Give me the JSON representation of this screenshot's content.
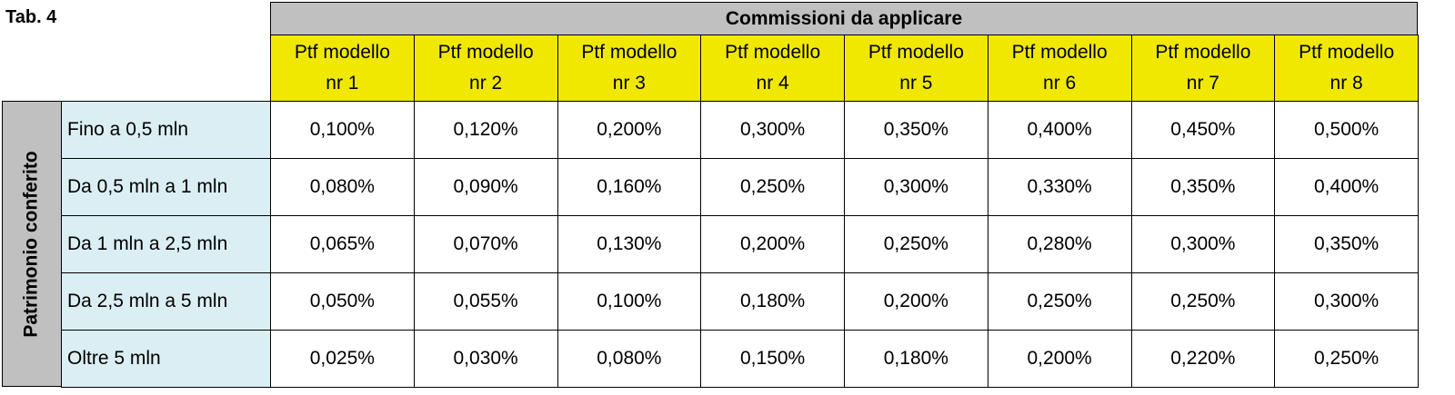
{
  "table": {
    "label": "Tab. 4",
    "group_header": "Commissioni da applicare",
    "side_header": "Patrimonio conferito",
    "columns": [
      "Ptf modello nr 1",
      "Ptf modello nr 2",
      "Ptf modello nr 3",
      "Ptf modello nr 4",
      "Ptf modello nr 5",
      "Ptf modello nr 6",
      "Ptf modello nr 7",
      "Ptf modello nr 8"
    ],
    "row_labels": [
      "Fino a 0,5 mln",
      "Da 0,5 mln a 1 mln",
      "Da 1 mln a 2,5 mln",
      "Da 2,5 mln a 5 mln",
      "Oltre 5 mln"
    ],
    "rows": [
      [
        "0,100%",
        "0,120%",
        "0,200%",
        "0,300%",
        "0,350%",
        "0,400%",
        "0,450%",
        "0,500%"
      ],
      [
        "0,080%",
        "0,090%",
        "0,160%",
        "0,250%",
        "0,300%",
        "0,330%",
        "0,350%",
        "0,400%"
      ],
      [
        "0,065%",
        "0,070%",
        "0,130%",
        "0,200%",
        "0,250%",
        "0,280%",
        "0,300%",
        "0,350%"
      ],
      [
        "0,050%",
        "0,055%",
        "0,100%",
        "0,180%",
        "0,200%",
        "0,250%",
        "0,250%",
        "0,300%"
      ],
      [
        "0,025%",
        "0,030%",
        "0,080%",
        "0,150%",
        "0,180%",
        "0,200%",
        "0,220%",
        "0,250%"
      ]
    ]
  }
}
